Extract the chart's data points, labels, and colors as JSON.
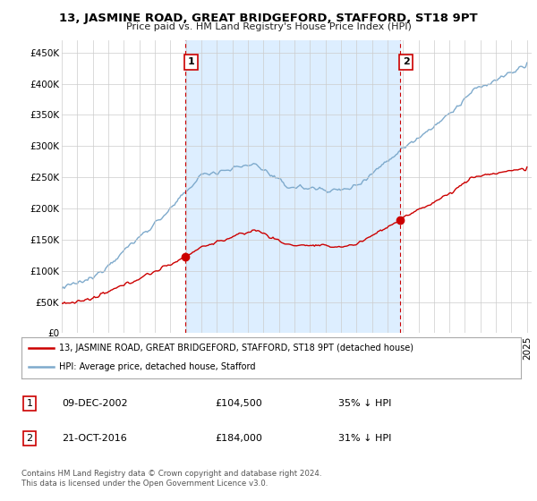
{
  "title": "13, JASMINE ROAD, GREAT BRIDGEFORD, STAFFORD, ST18 9PT",
  "subtitle": "Price paid vs. HM Land Registry's House Price Index (HPI)",
  "yticks": [
    0,
    50000,
    100000,
    150000,
    200000,
    250000,
    300000,
    350000,
    400000,
    450000
  ],
  "ylim": [
    0,
    470000
  ],
  "xlim_start": 1995.0,
  "xlim_end": 2025.3,
  "sale1_date_num": 2002.94,
  "sale1_price": 104500,
  "sale1_label": "1",
  "sale2_date_num": 2016.8,
  "sale2_price": 184000,
  "sale2_label": "2",
  "hpi_color": "#7eaacc",
  "hpi_fill_color": "#ddeeff",
  "price_color": "#cc0000",
  "vline_color": "#cc0000",
  "legend_house_label": "13, JASMINE ROAD, GREAT BRIDGEFORD, STAFFORD, ST18 9PT (detached house)",
  "legend_hpi_label": "HPI: Average price, detached house, Stafford",
  "table_row1": [
    "1",
    "09-DEC-2002",
    "£104,500",
    "35% ↓ HPI"
  ],
  "table_row2": [
    "2",
    "21-OCT-2016",
    "£184,000",
    "31% ↓ HPI"
  ],
  "footnote": "Contains HM Land Registry data © Crown copyright and database right 2024.\nThis data is licensed under the Open Government Licence v3.0.",
  "background_color": "#ffffff",
  "grid_color": "#cccccc"
}
